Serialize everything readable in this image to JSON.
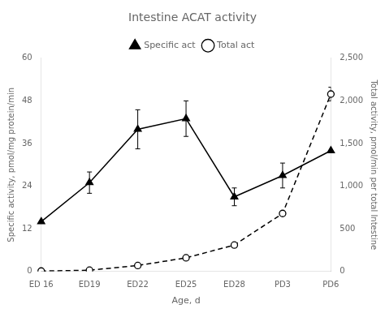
{
  "chart_data": {
    "type": "line",
    "title": "Intestine ACAT activity",
    "xlabel": "Age, d",
    "ylabel": "Specific activity, pmol/mg protein/min",
    "y2label": "Total activity, pmol/min per total Intestine",
    "categories": [
      "ED 16",
      "ED19",
      "ED22",
      "ED25",
      "ED28",
      "PD3",
      "PD6"
    ],
    "series": [
      {
        "name": "Specific act",
        "color": "#000000",
        "marker": "triangle",
        "line_style": "solid",
        "values": [
          14,
          25,
          40,
          43,
          21,
          27,
          34
        ],
        "errors": [
          0,
          3.0,
          5.5,
          5.0,
          2.5,
          3.5,
          0
        ]
      },
      {
        "name": "Total act",
        "axis": "y2",
        "color": "#000000",
        "marker": "circle",
        "line_style": "dashed",
        "values": [
          5,
          15,
          70,
          160,
          310,
          680,
          2080
        ],
        "errors": [
          0,
          0,
          0,
          15,
          25,
          0,
          80
        ]
      }
    ],
    "ylim": [
      0,
      60
    ],
    "yticks": [
      0,
      12,
      24,
      36,
      48,
      60
    ],
    "y2lim": [
      0,
      2500
    ],
    "y2ticks": [
      0,
      500,
      {
        "value": 1000,
        "label": "1,000"
      },
      {
        "value": 1500,
        "label": "1,500"
      },
      {
        "value": 2000,
        "label": "2,000"
      },
      {
        "value": 2500,
        "label": "2,500"
      }
    ],
    "grid": false,
    "legend": "top"
  }
}
